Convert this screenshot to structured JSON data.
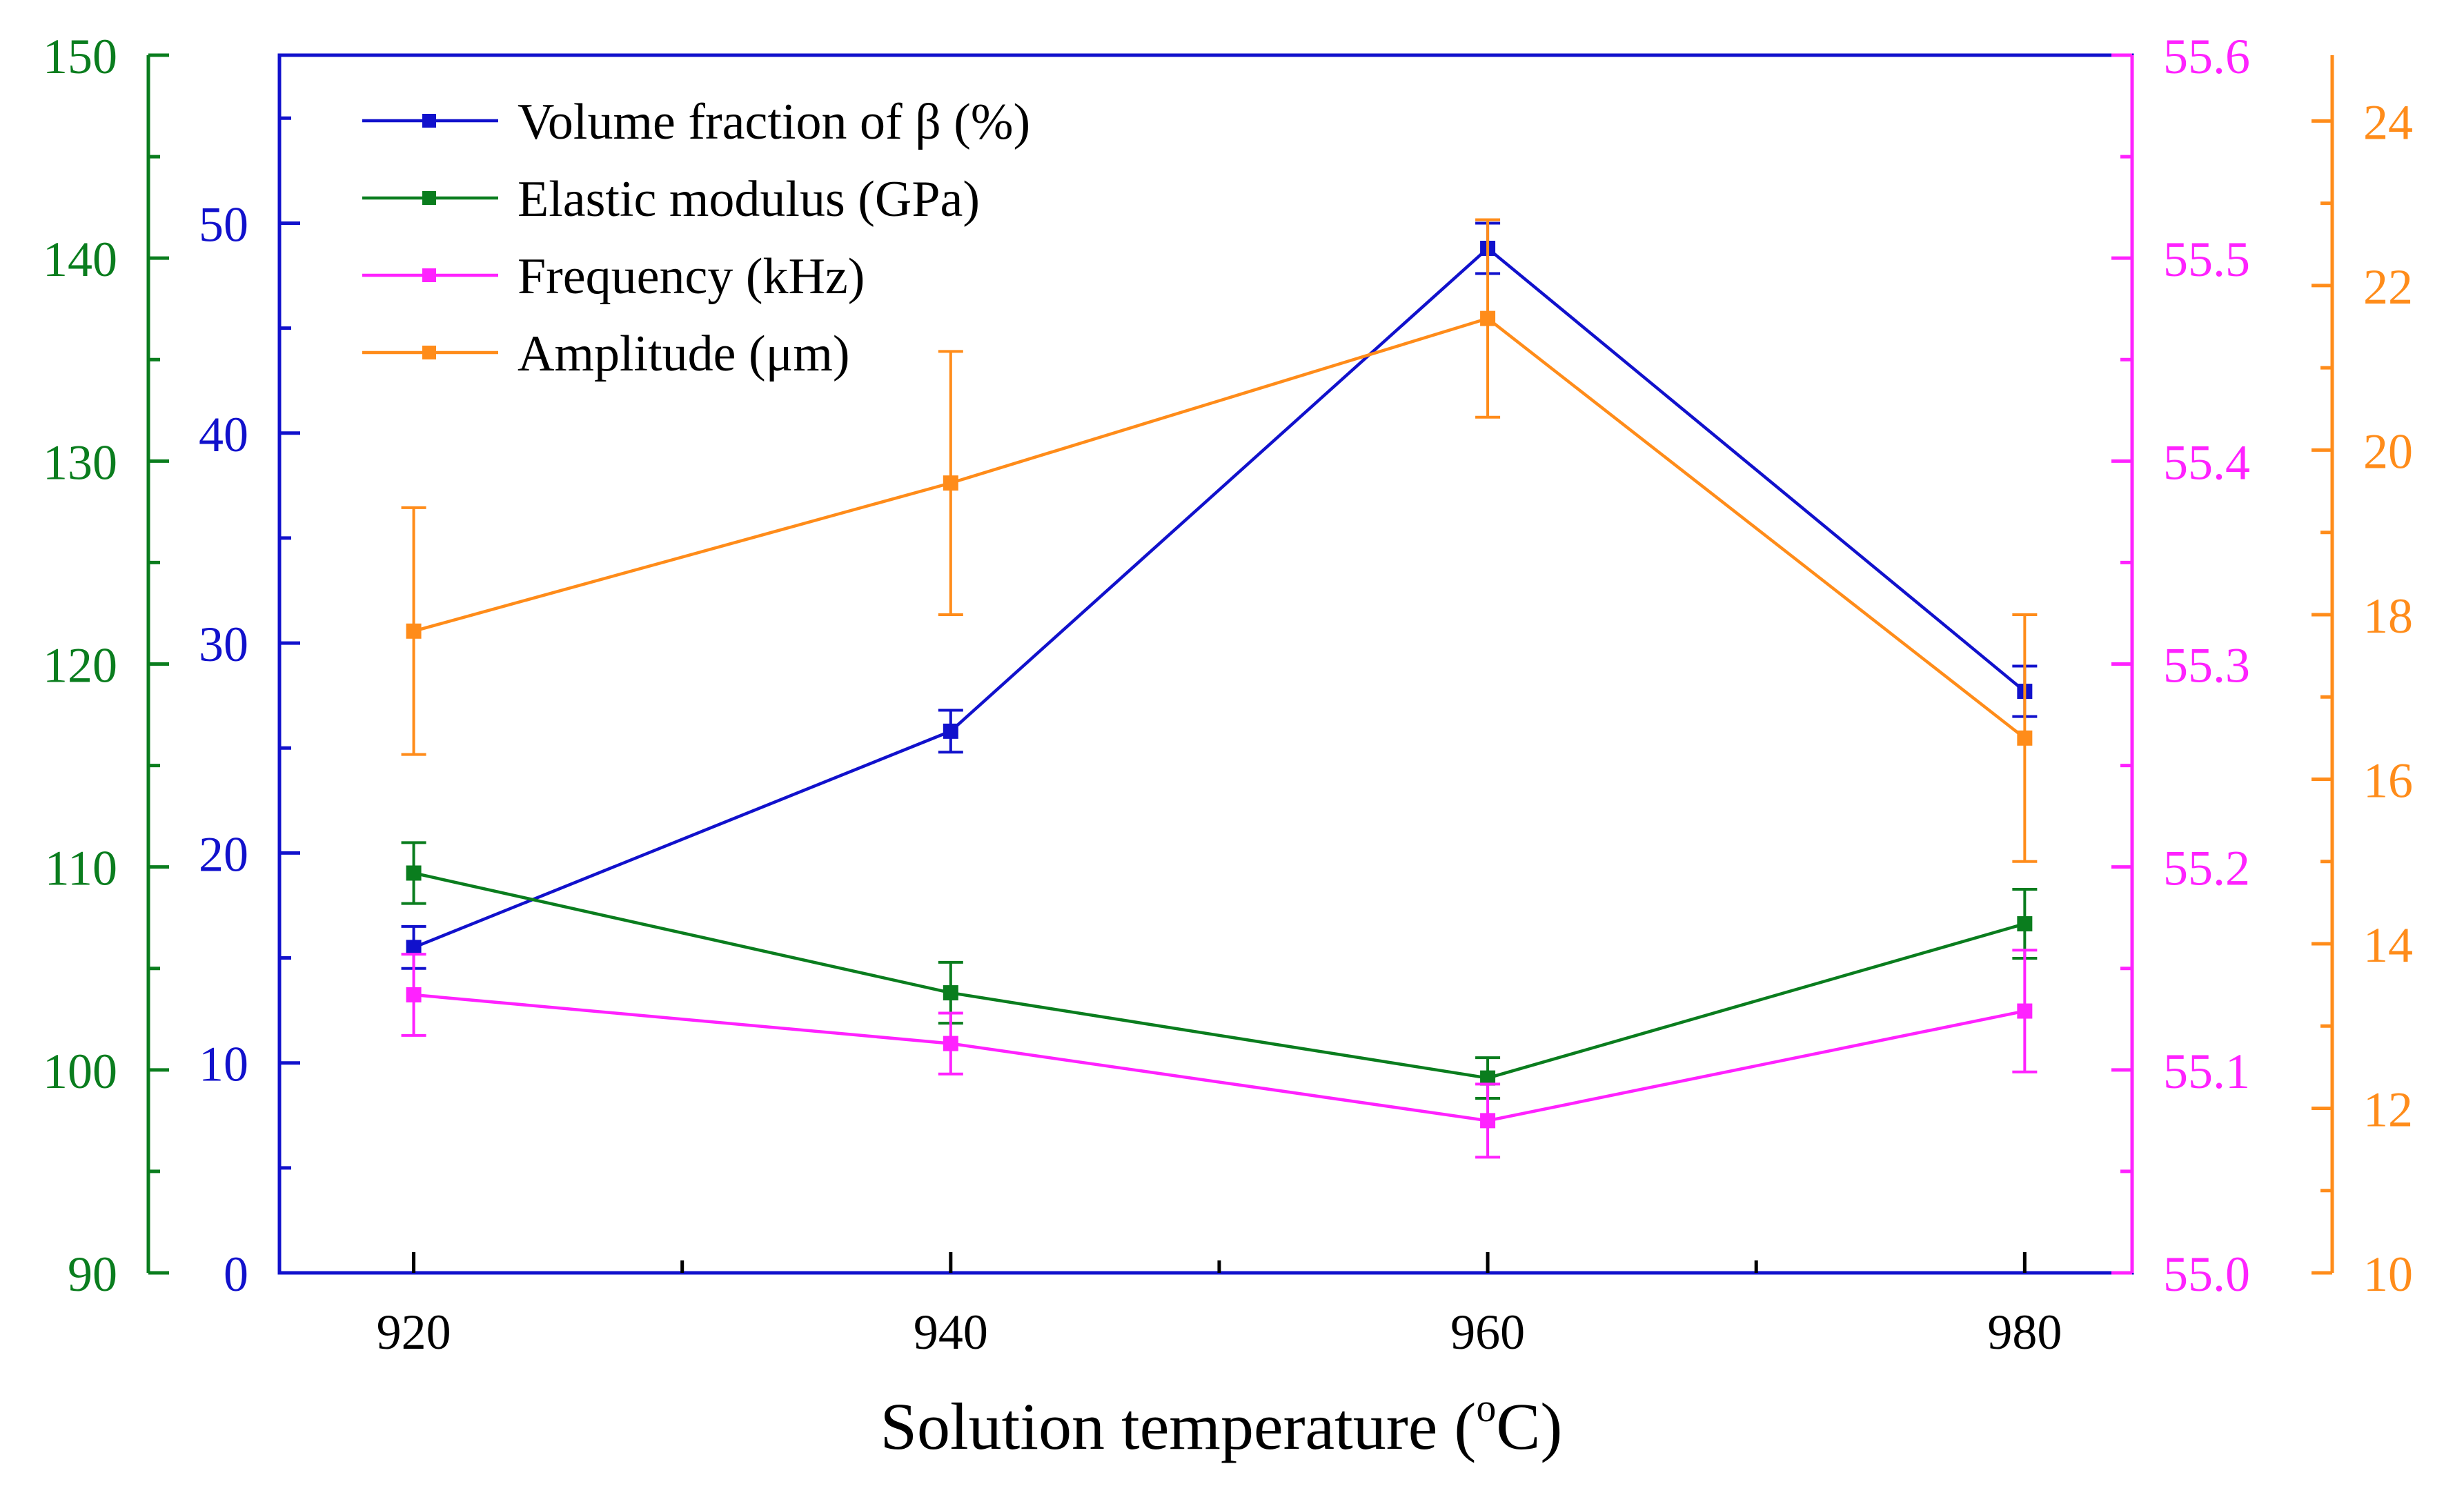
{
  "chart_data": {
    "type": "line",
    "title": "",
    "xlabel": "Solution temperature (°C)",
    "xlabel_main": "Solution temperature (",
    "xlabel_sup": "o",
    "xlabel_end": "C)",
    "x": [
      920,
      940,
      960,
      980
    ],
    "x_ticks": [
      "920",
      "940",
      "960",
      "980"
    ],
    "xlim": [
      915,
      984
    ],
    "legend_position": "top-left",
    "series": [
      {
        "name": "Volume fraction of β (%)",
        "axis": "blue",
        "color": "#1111cc",
        "values": [
          15.5,
          25.8,
          48.8,
          27.7
        ],
        "errors": [
          1.0,
          1.0,
          1.2,
          1.2
        ]
      },
      {
        "name": "Elastic modulus (GPa)",
        "axis": "green",
        "color": "#0a7d1e",
        "values": [
          109.7,
          103.8,
          99.6,
          107.2
        ],
        "errors": [
          1.5,
          1.5,
          1.0,
          1.7
        ]
      },
      {
        "name": "Frequency (kHz)",
        "axis": "magenta",
        "color": "#ff22ff",
        "values": [
          55.137,
          55.113,
          55.075,
          55.129
        ],
        "errors": [
          0.02,
          0.015,
          0.018,
          0.03
        ]
      },
      {
        "name": "Amplitude (μm)",
        "axis": "orange",
        "color": "#ff8c1a",
        "values": [
          17.8,
          19.6,
          21.6,
          16.5
        ],
        "errors": [
          1.5,
          1.6,
          1.2,
          1.5
        ]
      }
    ],
    "axes": {
      "green": {
        "side": "left-outer",
        "color": "#0a7d1e",
        "ylim": [
          90,
          150
        ],
        "ticks": [
          "90",
          "100",
          "110",
          "120",
          "130",
          "140",
          "150"
        ],
        "tick_values": [
          90,
          100,
          110,
          120,
          130,
          140,
          150
        ],
        "minor_step": 5
      },
      "blue": {
        "side": "left-inner",
        "color": "#1111cc",
        "ylim": [
          0,
          58
        ],
        "ticks": [
          "0",
          "10",
          "20",
          "30",
          "40",
          "50"
        ],
        "tick_values": [
          0,
          10,
          20,
          30,
          40,
          50
        ],
        "minor_step": 5
      },
      "magenta": {
        "side": "right-inner",
        "color": "#ff22ff",
        "ylim": [
          55.0,
          55.6
        ],
        "ticks": [
          "55.0",
          "55.1",
          "55.2",
          "55.3",
          "55.4",
          "55.5",
          "55.6"
        ],
        "tick_values": [
          55.0,
          55.1,
          55.2,
          55.3,
          55.4,
          55.5,
          55.6
        ],
        "minor_step": 0.05
      },
      "orange": {
        "side": "right-outer",
        "color": "#ff8c1a",
        "ylim": [
          10,
          24.8
        ],
        "ticks": [
          "10",
          "12",
          "14",
          "16",
          "18",
          "20",
          "22",
          "24"
        ],
        "tick_values": [
          10,
          12,
          14,
          16,
          18,
          20,
          22,
          24
        ],
        "minor_step": 1
      }
    }
  }
}
